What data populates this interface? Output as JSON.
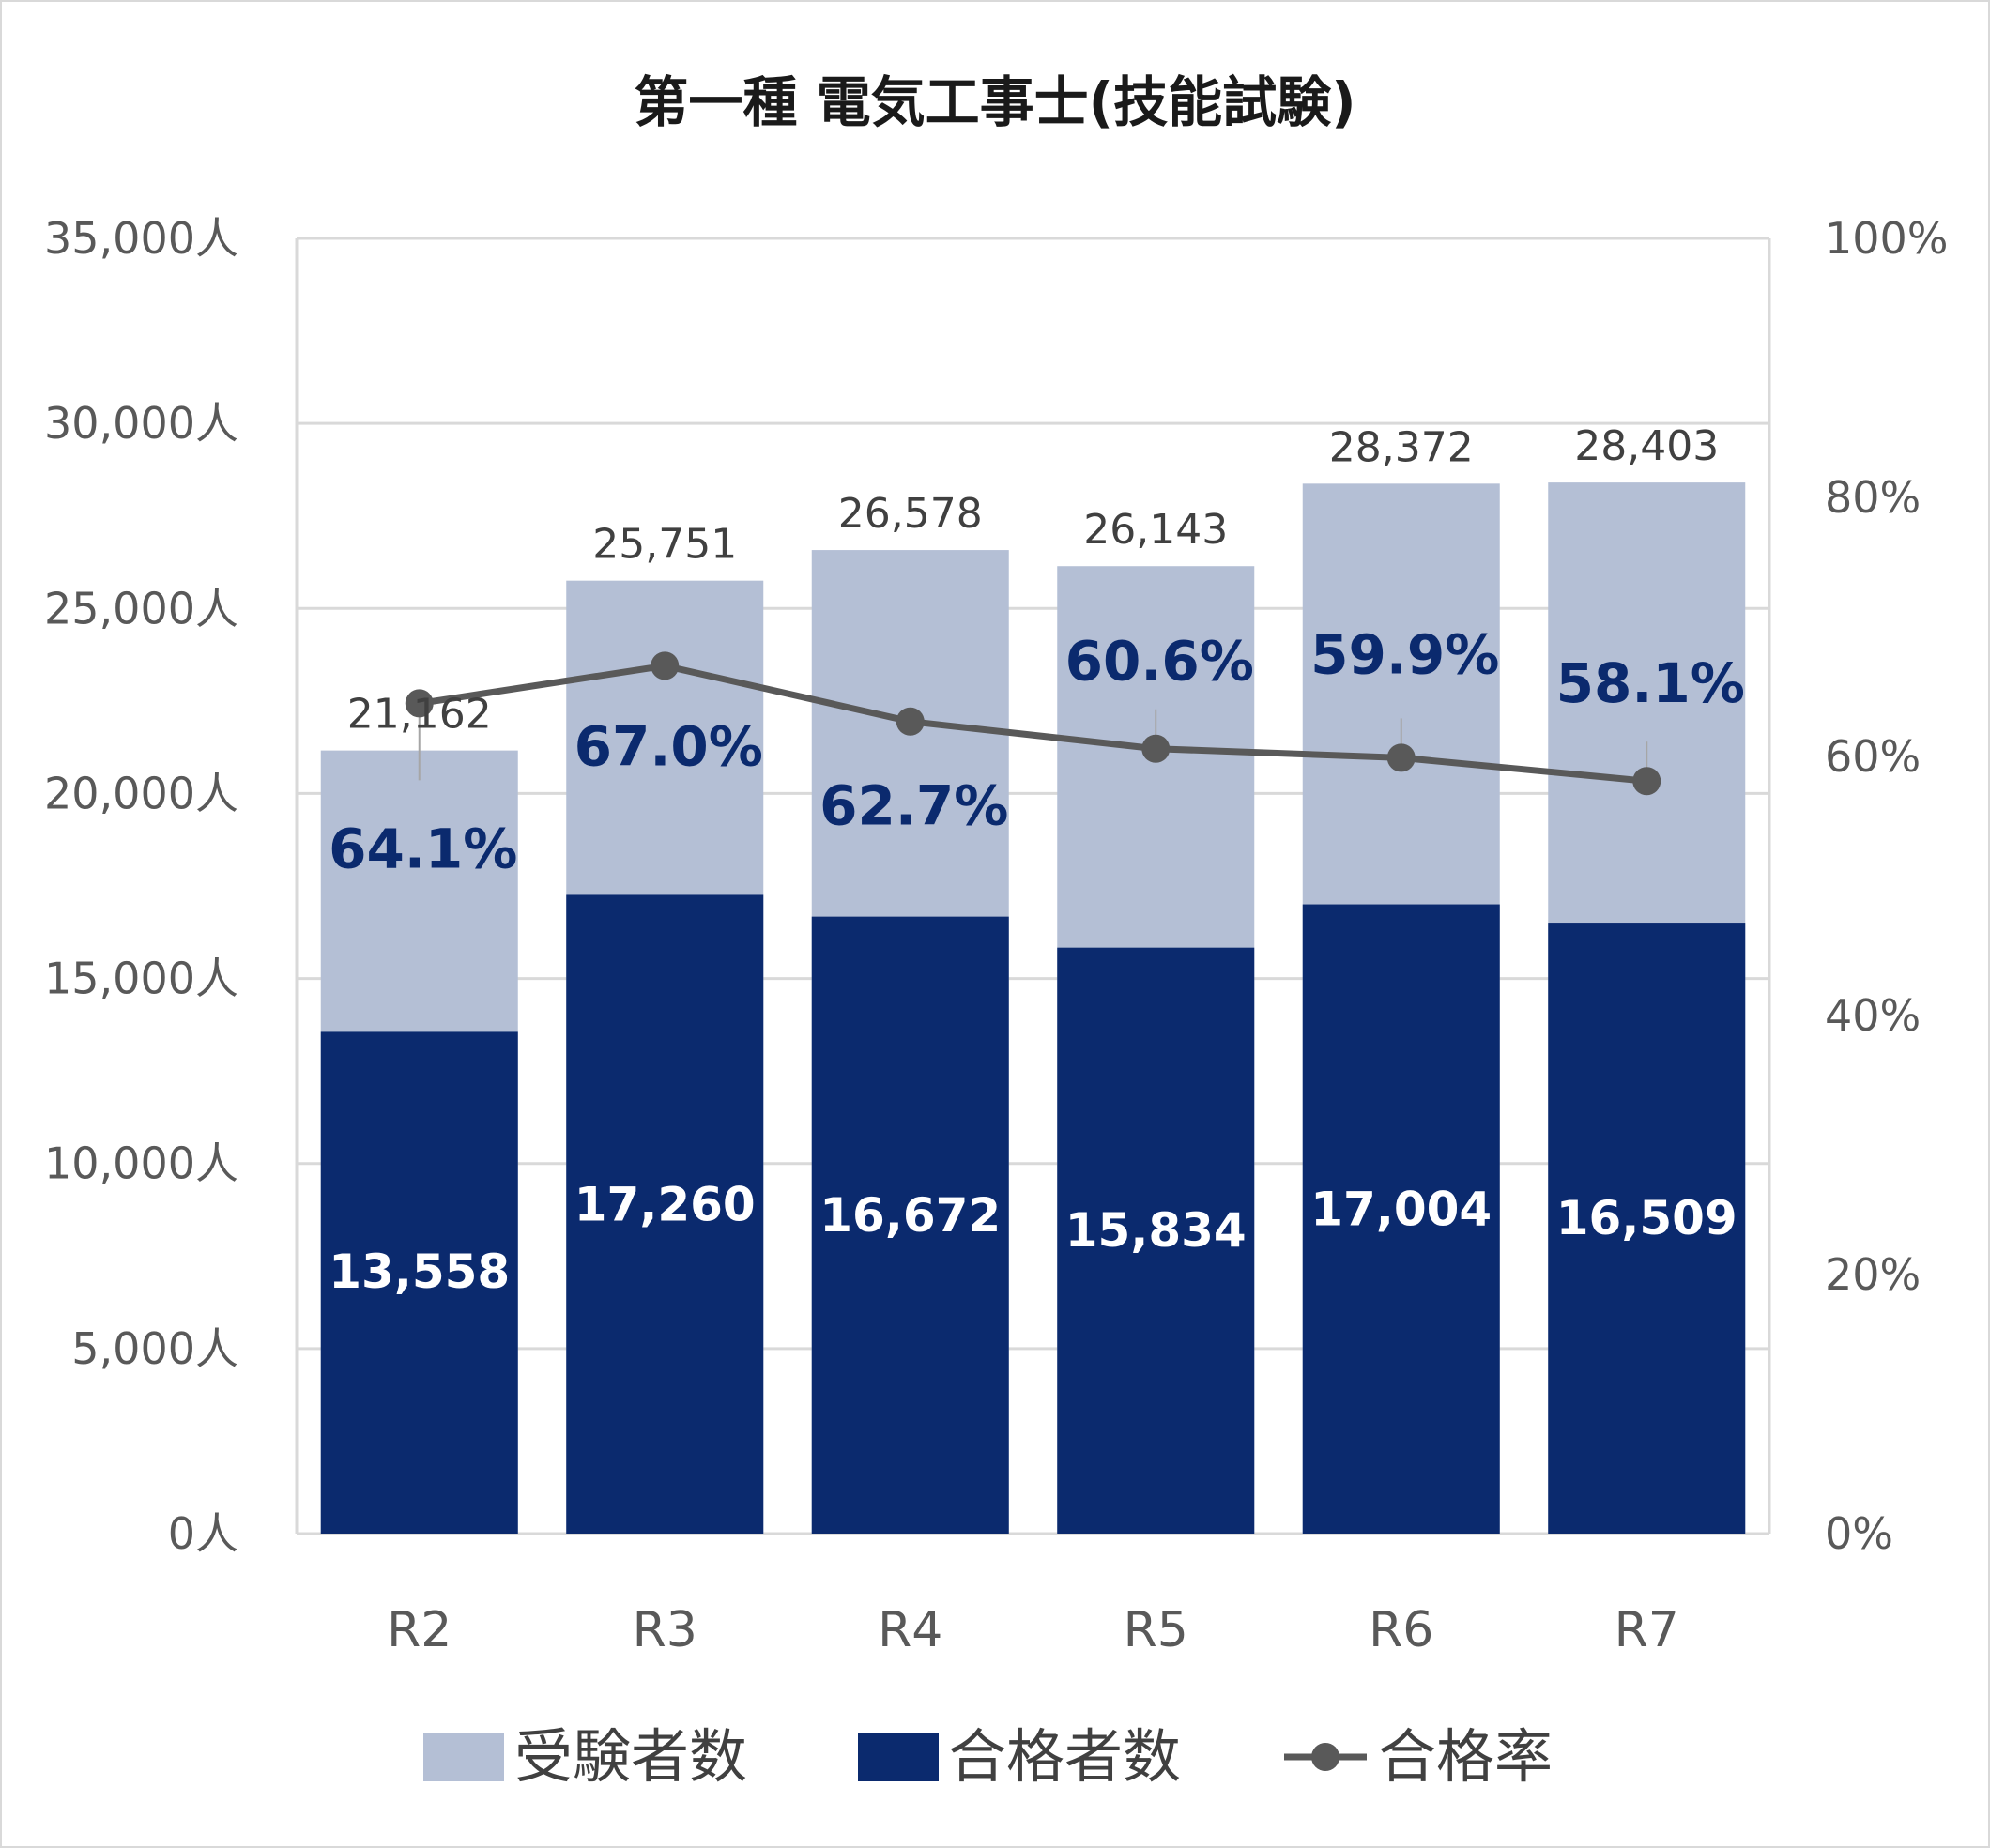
{
  "colors": {
    "examinees": "#b4bfd5",
    "passers": "#0b2a6e",
    "rate_line": "#595959",
    "grid": "#d9d9d9"
  },
  "chart_data": {
    "type": "bar",
    "stacked": true,
    "title": "第一種 電気工事士(技能試験)",
    "categories": [
      "R2",
      "R3",
      "R4",
      "R5",
      "R6",
      "R7"
    ],
    "y_left": {
      "ticks": [
        "0人",
        "5,000人",
        "10,000人",
        "15,000人",
        "20,000人",
        "25,000人",
        "30,000人",
        "35,000人"
      ],
      "ylim": [
        0,
        35000
      ]
    },
    "y_right": {
      "ticks": [
        "0%",
        "20%",
        "40%",
        "60%",
        "80%",
        "100%"
      ],
      "ylim": [
        0,
        100
      ]
    },
    "grid": true,
    "legend_position": "bottom",
    "series": [
      {
        "name": "受験者数",
        "type": "bar",
        "values": [
          21162,
          25751,
          26578,
          26143,
          28372,
          28403
        ],
        "labels": [
          "21,162",
          "25,751",
          "26,578",
          "26,143",
          "28,372",
          "28,403"
        ]
      },
      {
        "name": "合格者数",
        "type": "bar",
        "values": [
          13558,
          17260,
          16672,
          15834,
          17004,
          16509
        ],
        "labels": [
          "13,558",
          "17,260",
          "16,672",
          "15,834",
          "17,004",
          "16,509"
        ]
      },
      {
        "name": "合格率",
        "type": "line",
        "axis": "right",
        "values": [
          64.1,
          67.0,
          62.7,
          60.6,
          59.9,
          58.1
        ],
        "labels": [
          "64.1%",
          "67.0%",
          "62.7%",
          "60.6%",
          "59.9%",
          "58.1%"
        ]
      }
    ]
  }
}
